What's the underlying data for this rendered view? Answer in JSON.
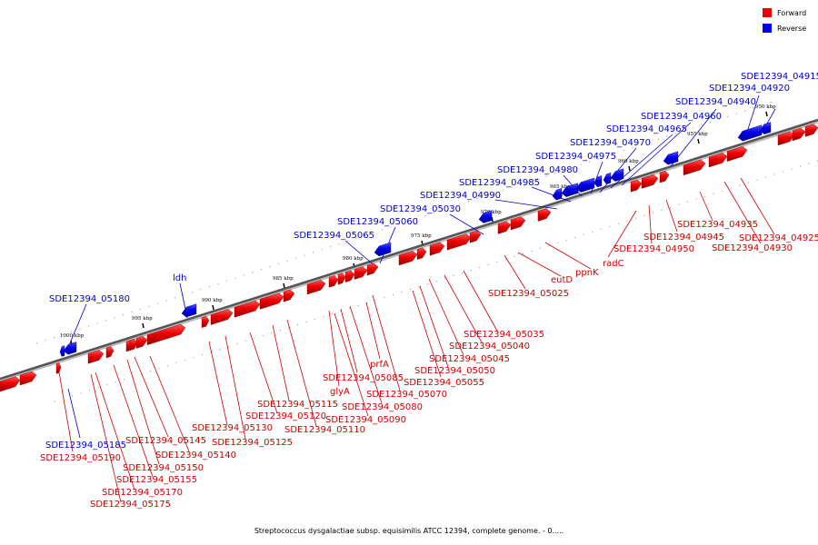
{
  "legend": {
    "forward_label": "Forward",
    "reverse_label": "Reverse",
    "forward_color": "#ee0000",
    "reverse_color": "#0000ee"
  },
  "caption": "Streptococcus dysgalactiae subsp. equisimilis ATCC 12394, complete genome. - 0.....",
  "ticks": [
    "950 kbp",
    "955 kbp",
    "960 kbp",
    "965 kbp",
    "970 kbp",
    "975 kbp",
    "980 kbp",
    "985 kbp",
    "990 kbp",
    "995 kbp",
    "1000 kbp"
  ],
  "forward_labels": [
    "SDE12394_04925",
    "SDE12394_04930",
    "SDE12394_04935",
    "SDE12394_04945",
    "SDE12394_04950",
    "radC",
    "ppnK",
    "eutD",
    "SDE12394_05025",
    "SDE12394_05035",
    "SDE12394_05040",
    "SDE12394_05045",
    "SDE12394_05050",
    "SDE12394_05055",
    "SDE12394_05070",
    "prfA",
    "SDE12394_05080",
    "SDE12394_05085",
    "glyA",
    "SDE12394_05090",
    "SDE12394_05110",
    "SDE12394_05115",
    "SDE12394_05120",
    "SDE12394_05125",
    "SDE12394_05130",
    "SDE12394_05140",
    "SDE12394_05145",
    "SDE12394_05150",
    "SDE12394_05155",
    "SDE12394_05170",
    "SDE12394_05175",
    "SDE12394_05190"
  ],
  "reverse_labels": [
    "SDE12394_04915",
    "SDE12394_04920",
    "SDE12394_04940",
    "SDE12394_04960",
    "SDE12394_04965",
    "SDE12394_04970",
    "SDE12394_04975",
    "SDE12394_04980",
    "SDE12394_04985",
    "SDE12394_04990",
    "SDE12394_05030",
    "SDE12394_05060",
    "SDE12394_05065",
    "ldh",
    "SDE12394_05180",
    "SDE12394_05185"
  ]
}
